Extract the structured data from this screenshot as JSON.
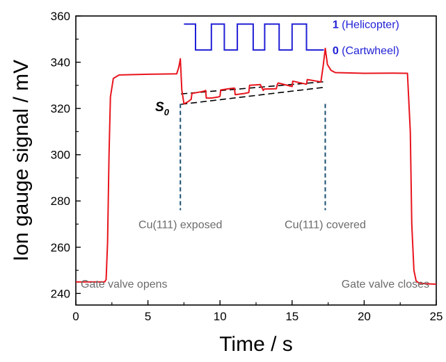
{
  "chart_data": {
    "type": "line",
    "xlabel": "Time / s",
    "ylabel": "Ion gauge signal / mV",
    "xlim": [
      0,
      25
    ],
    "ylim": [
      235,
      360
    ],
    "xticks": [
      "0",
      "5",
      "10",
      "15",
      "20",
      "25"
    ],
    "yticks": [
      "240",
      "260",
      "280",
      "300",
      "320",
      "340",
      "360"
    ],
    "grid": false,
    "series": [
      {
        "color": "#e8141c",
        "x": [
          0,
          2.0,
          2.1,
          2.2,
          2.3,
          2.4,
          2.6,
          3.0,
          5.0,
          7.0,
          7.15,
          7.25,
          7.35,
          7.5,
          7.8,
          8.0,
          8.05,
          8.5,
          8.9,
          9.0,
          9.05,
          9.4,
          9.9,
          10.0,
          10.05,
          10.6,
          11.0,
          11.05,
          11.7,
          12.0,
          12.05,
          12.8,
          13.0,
          13.05,
          13.9,
          14.0,
          14.05,
          15.0,
          15.05,
          16.0,
          16.05,
          17.0,
          17.15,
          17.3,
          17.45,
          17.7,
          18.0,
          20.0,
          22.0,
          23.0,
          23.2,
          23.3,
          23.45,
          23.6,
          23.8,
          24.3,
          25.0
        ],
        "y": [
          245,
          245,
          246,
          262,
          300,
          325,
          333,
          334.5,
          334.8,
          335,
          338,
          341.5,
          328,
          322,
          323,
          324,
          326.5,
          327,
          327.5,
          327.8,
          324.5,
          324.5,
          325,
          325.3,
          328,
          328.5,
          328.8,
          326,
          326.5,
          326.9,
          330,
          330.3,
          327.8,
          328.4,
          328.5,
          330.8,
          331,
          329.5,
          331.8,
          330.5,
          332.5,
          331.5,
          338,
          346,
          339,
          336.5,
          335.5,
          335.2,
          335.3,
          335.2,
          310,
          270,
          250,
          245.5,
          244.5,
          244.2,
          244
        ]
      }
    ],
    "dashed_lines": [
      {
        "color": "#000000",
        "x": [
          7.3,
          17.3
        ],
        "y": [
          321.8,
          329.2
        ]
      },
      {
        "color": "#000000",
        "x": [
          7.3,
          17.3
        ],
        "y": [
          326.3,
          331.6
        ]
      }
    ],
    "markers": [
      {
        "x": 7.25,
        "label": "Cu(111) exposed"
      },
      {
        "x": 17.3,
        "label": "Cu(111) covered"
      }
    ],
    "inset": {
      "color": "#1f1fd6",
      "levels": {
        "high": 1,
        "low": 0
      },
      "level_y": {
        "high": 356.5,
        "low": 345.3
      },
      "x_start": 7.5,
      "x_end": 17.2,
      "steps": [
        [
          7.5,
          1
        ],
        [
          8.3,
          0
        ],
        [
          9.4,
          1
        ],
        [
          10.3,
          0
        ],
        [
          11.2,
          1
        ],
        [
          12.3,
          0
        ],
        [
          13.1,
          1
        ],
        [
          14.1,
          0
        ],
        [
          15.0,
          1
        ],
        [
          16.0,
          0
        ],
        [
          17.2,
          0
        ]
      ],
      "label_high_bold": "1",
      "label_high_rest": " (Helicopter)",
      "label_low_bold": "0",
      "label_low_rest": " (Cartwheel)"
    },
    "annotations": {
      "gate_open": "Gate valve opens",
      "gate_close": "Gate valve closes",
      "s0_main": "S",
      "s0_sub": "0"
    }
  }
}
